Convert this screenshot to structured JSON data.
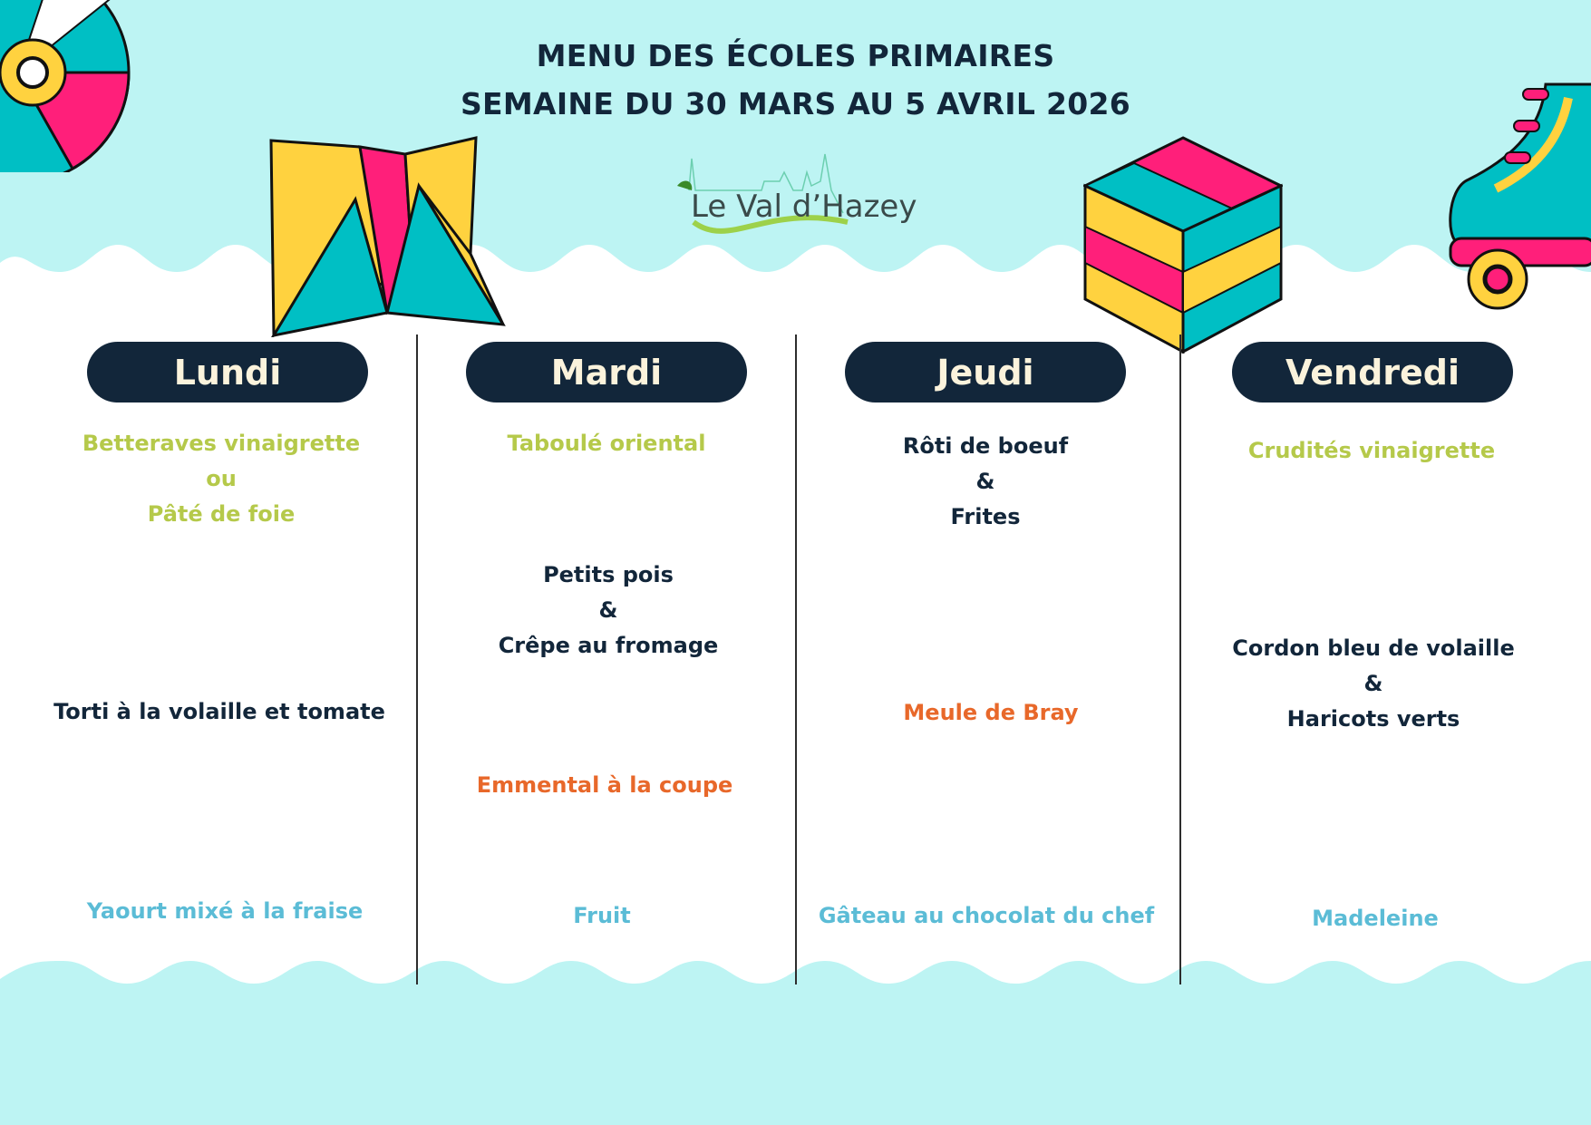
{
  "header": {
    "title_line1": "MENU DES ÉCOLES PRIMAIRES",
    "title_line2": "SEMAINE DU 30 MARS AU 5 AVRIL 2026",
    "logo_text": "Le Val d’Hazey"
  },
  "colors": {
    "background": "#bdf4f3",
    "pill": "#12263a",
    "starter": "#b5c94a",
    "main": "#12263a",
    "cheese": "#e8682a",
    "dessert": "#5bbcd6"
  },
  "days": [
    {
      "label": "Lundi",
      "starter": [
        "Betteraves vinaigrette",
        "ou",
        "Pâté de foie"
      ],
      "main": [
        "Torti à la volaille et tomate"
      ],
      "cheese": [],
      "dessert": [
        "Yaourt mixé à la fraise"
      ]
    },
    {
      "label": "Mardi",
      "starter": [
        "Taboulé oriental"
      ],
      "main": [
        "Petits pois",
        "&",
        "Crêpe au fromage"
      ],
      "cheese": [
        "Emmental à la coupe"
      ],
      "dessert": [
        "Fruit"
      ]
    },
    {
      "label": "Jeudi",
      "starter": [],
      "main": [
        "Rôti de boeuf",
        "&",
        "Frites"
      ],
      "cheese": [
        "Meule de Bray"
      ],
      "dessert": [
        "Gâteau au chocolat du chef"
      ]
    },
    {
      "label": "Vendredi",
      "starter": [
        "Crudités vinaigrette"
      ],
      "main": [
        "Cordon bleu de volaille",
        "&",
        "Haricots verts"
      ],
      "cheese": [],
      "dessert": [
        "Madeleine"
      ]
    }
  ],
  "decorations": [
    "vinyl-record-icon",
    "paper-fortune-teller-icon",
    "rubiks-cube-icon",
    "roller-skate-icon"
  ]
}
